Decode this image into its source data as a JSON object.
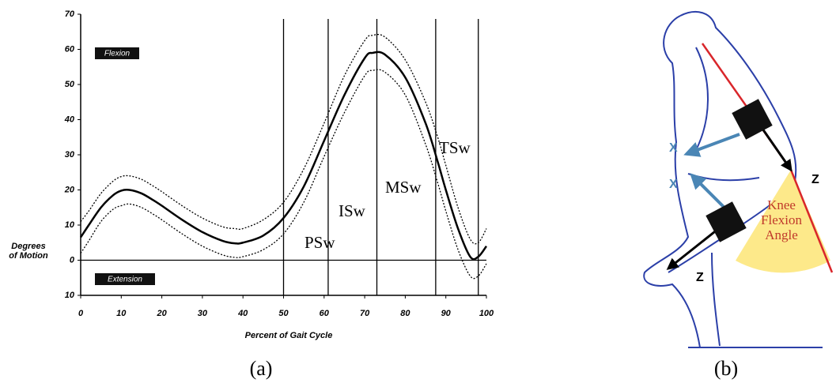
{
  "chart_data": {
    "type": "line",
    "x_label": "Percent of Gait Cycle",
    "y_label": "Degrees of Motion",
    "x": [
      0,
      2,
      5,
      8,
      10,
      12,
      15,
      18,
      20,
      25,
      30,
      35,
      38,
      40,
      45,
      50,
      55,
      60,
      65,
      70,
      72,
      75,
      80,
      85,
      88,
      90,
      93,
      96,
      98,
      100
    ],
    "series": [
      {
        "color": "#000000",
        "line_style": "solid",
        "values": [
          6.5,
          10,
          15,
          18.5,
          19.8,
          20,
          19,
          17,
          15.5,
          11.5,
          8,
          5.5,
          4.8,
          5,
          7,
          12,
          21,
          34,
          47,
          57.5,
          59,
          58.5,
          52,
          39,
          28,
          20,
          9,
          1,
          1,
          4
        ]
      },
      {
        "color": "#000000",
        "line_style": "dotted",
        "values": [
          11,
          14,
          19,
          22.5,
          23.8,
          24,
          23,
          21,
          19.5,
          15.5,
          12,
          9.5,
          9,
          9,
          11.5,
          16.5,
          26,
          39,
          52.5,
          62.5,
          64,
          63.5,
          57,
          45,
          35,
          27,
          15,
          6,
          5,
          9
        ]
      },
      {
        "color": "#000000",
        "line_style": "dotted",
        "values": [
          2,
          5.5,
          11,
          14.5,
          15.5,
          16,
          15,
          13,
          11.5,
          7.5,
          4,
          1.5,
          0.8,
          1,
          3,
          7.5,
          16.5,
          29.5,
          42,
          52.5,
          54,
          53.5,
          47,
          33,
          22,
          14,
          3,
          -4.5,
          -4.5,
          -1
        ]
      }
    ],
    "xlim": [
      0,
      100
    ],
    "ylim": [
      -10,
      70
    ],
    "xticks": [
      0,
      10,
      20,
      30,
      40,
      50,
      60,
      70,
      80,
      90,
      100
    ],
    "yticks": [
      {
        "value": -10,
        "label": "10"
      },
      0,
      10,
      20,
      30,
      40,
      50,
      60,
      70
    ],
    "annotations": [
      "Flexion",
      "Extension"
    ],
    "phase_lines": [
      50,
      61,
      73,
      87.5,
      98
    ],
    "phase_labels": [
      "PSw",
      "ISw",
      "MSw",
      "TSw"
    ],
    "caption": "(a)"
  },
  "illustration": {
    "axis_labels": [
      "X",
      "X",
      "Z",
      "Z"
    ],
    "angle_label": "Knee Flexion Angle",
    "caption": "(b)"
  }
}
